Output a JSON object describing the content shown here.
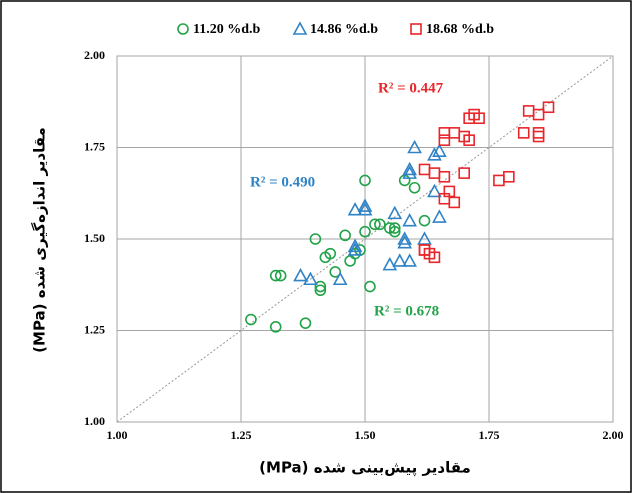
{
  "chart_data": {
    "type": "scatter",
    "xlabel": "مقادیر پیش‌بینی شده (MPa)",
    "ylabel": "مقادیر اندازه‌گیری شده (MPa)",
    "xlim": [
      1,
      2
    ],
    "ylim": [
      1,
      2
    ],
    "xticks": [
      {
        "value": 1,
        "label": "1.00"
      },
      {
        "value": 1.25,
        "label": "1.25"
      },
      {
        "value": 1.5,
        "label": "1.50"
      },
      {
        "value": 1.75,
        "label": "1.75"
      },
      {
        "value": 2,
        "label": "2.00"
      }
    ],
    "yticks": [
      {
        "value": 1,
        "label": "1.00"
      },
      {
        "value": 1.25,
        "label": "1.25"
      },
      {
        "value": 1.5,
        "label": "1.50"
      },
      {
        "value": 1.75,
        "label": "1.75"
      },
      {
        "value": 2,
        "label": "2.00"
      }
    ],
    "grid": true,
    "series": [
      {
        "name": "11.20 %d.b",
        "color": "#22a34a",
        "marker": "circle",
        "x": [
          1.27,
          1.32,
          1.32,
          1.33,
          1.38,
          1.4,
          1.42,
          1.43,
          1.41,
          1.41,
          1.44,
          1.46,
          1.47,
          1.48,
          1.49,
          1.5,
          1.5,
          1.51,
          1.52,
          1.53,
          1.55,
          1.56,
          1.56,
          1.58,
          1.6,
          1.62
        ],
        "y": [
          1.28,
          1.26,
          1.4,
          1.4,
          1.27,
          1.5,
          1.45,
          1.46,
          1.37,
          1.36,
          1.41,
          1.51,
          1.44,
          1.46,
          1.47,
          1.52,
          1.66,
          1.37,
          1.54,
          1.54,
          1.53,
          1.52,
          1.53,
          1.66,
          1.64,
          1.55
        ]
      },
      {
        "name": "14.86 %d.b",
        "color": "#2f83c6",
        "marker": "triangle",
        "x": [
          1.37,
          1.39,
          1.45,
          1.48,
          1.48,
          1.48,
          1.5,
          1.5,
          1.55,
          1.56,
          1.57,
          1.58,
          1.58,
          1.59,
          1.59,
          1.59,
          1.59,
          1.6,
          1.62,
          1.64,
          1.65,
          1.65,
          1.64
        ],
        "y": [
          1.4,
          1.39,
          1.39,
          1.58,
          1.48,
          1.47,
          1.59,
          1.58,
          1.43,
          1.57,
          1.44,
          1.5,
          1.49,
          1.44,
          1.55,
          1.69,
          1.68,
          1.75,
          1.5,
          1.73,
          1.74,
          1.56,
          1.63
        ]
      },
      {
        "name": "18.68 %d.b",
        "color": "#e8262a",
        "marker": "square",
        "x": [
          1.62,
          1.62,
          1.63,
          1.64,
          1.62,
          1.64,
          1.66,
          1.66,
          1.67,
          1.68,
          1.66,
          1.66,
          1.68,
          1.7,
          1.7,
          1.71,
          1.71,
          1.72,
          1.73,
          1.77,
          1.79,
          1.82,
          1.83,
          1.85,
          1.85,
          1.85,
          1.87
        ],
        "y": [
          1.47,
          1.47,
          1.46,
          1.45,
          1.69,
          1.68,
          1.67,
          1.61,
          1.63,
          1.6,
          1.79,
          1.77,
          1.79,
          1.68,
          1.78,
          1.77,
          1.83,
          1.84,
          1.83,
          1.66,
          1.67,
          1.79,
          1.85,
          1.79,
          1.78,
          1.84,
          1.86
        ]
      }
    ],
    "annotations": [
      {
        "text": "R² = 0.447",
        "color": "#e8262a"
      },
      {
        "text": "R² = 0.490",
        "color": "#2f83c6"
      },
      {
        "text": "R² = 0.678",
        "color": "#22a34a"
      }
    ]
  }
}
